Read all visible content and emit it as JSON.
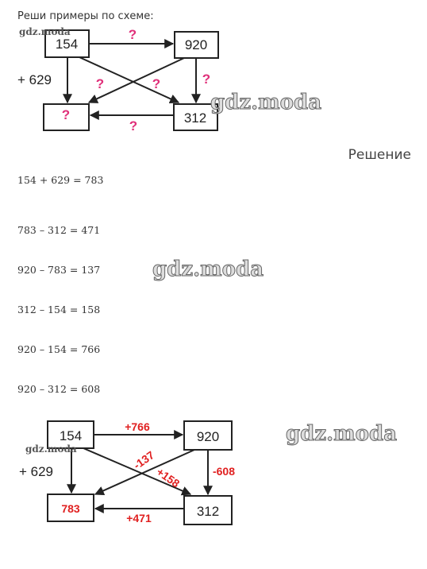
{
  "task": "Реши примеры по схеме:",
  "watermark": "gdz.moda",
  "scheme": {
    "boxes": [
      "154",
      "920",
      "?",
      "312"
    ],
    "add_label": "+ 629",
    "arrows": [
      "?",
      "?",
      "?",
      "?",
      "?"
    ]
  },
  "solution_title": "Решение",
  "equations": [
    "154 + 629 = 783",
    "783 – 312 = 471",
    "920 – 783 = 137",
    "312 – 154 = 158",
    "920 – 154 = 766",
    "920 – 312 = 608"
  ],
  "answer_scheme": {
    "boxes": [
      "154",
      "920",
      "783",
      "312"
    ],
    "add_label": "+ 629",
    "arrows": [
      "+766",
      "-137",
      "+158",
      "-608",
      "+471"
    ]
  }
}
